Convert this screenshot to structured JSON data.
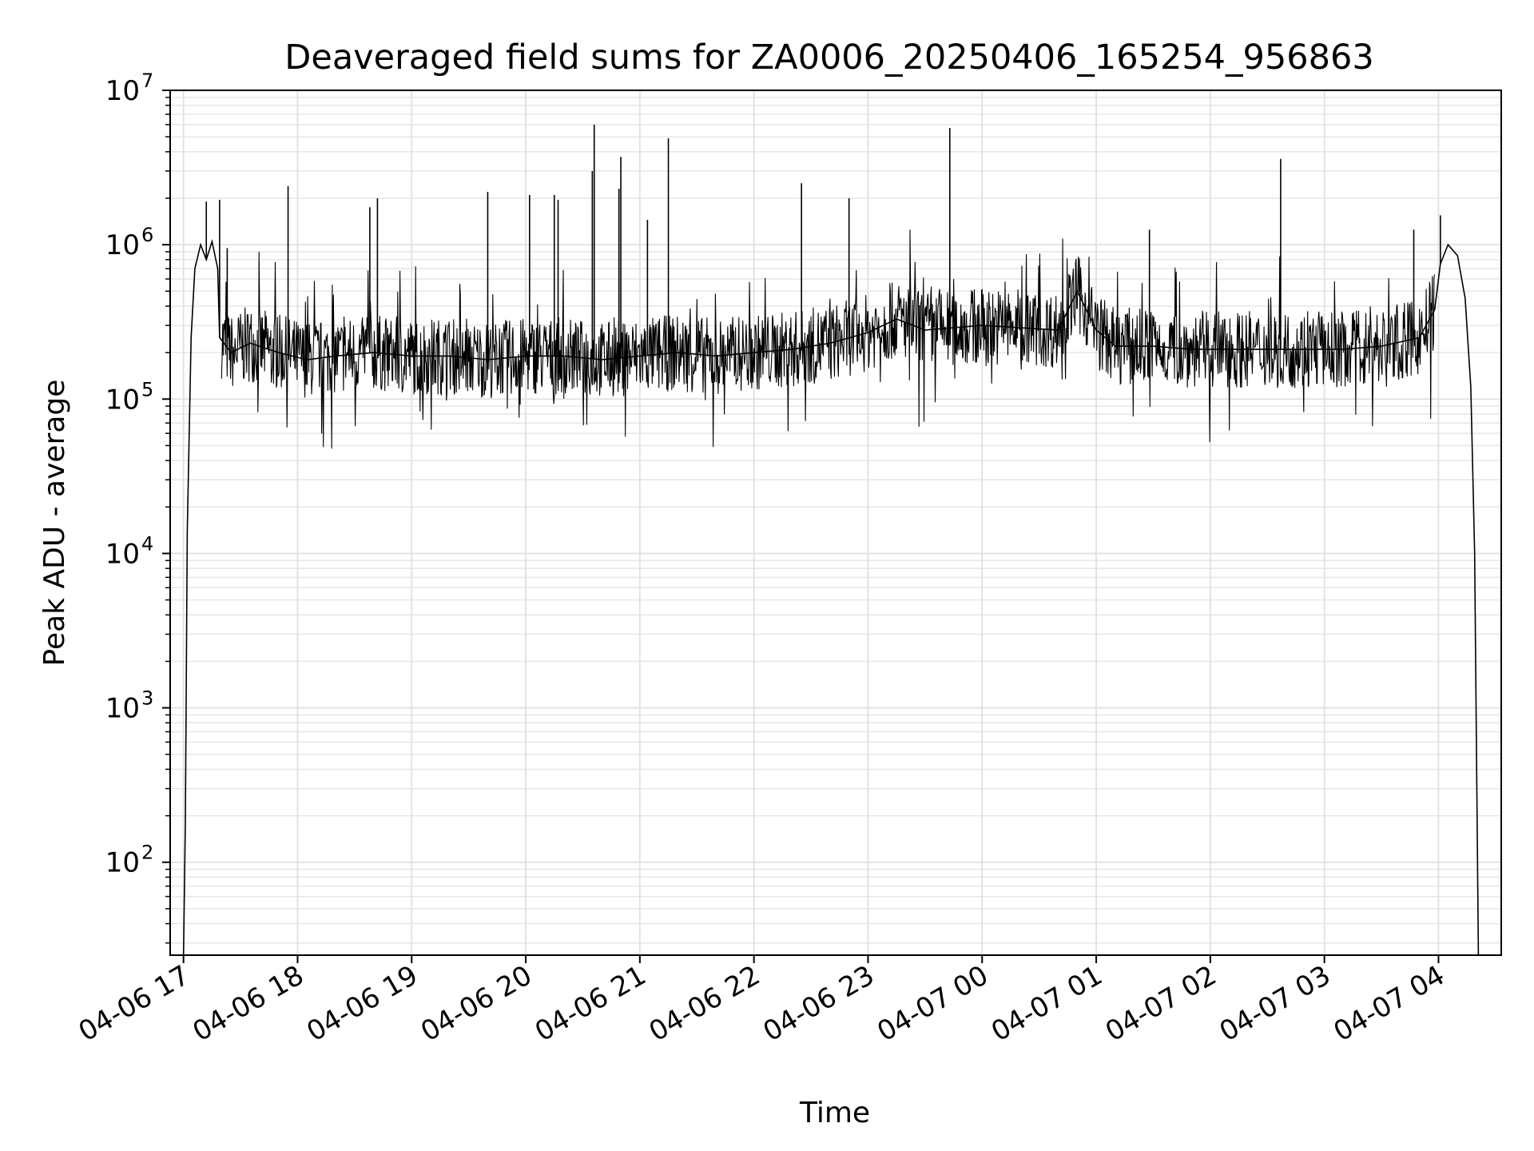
{
  "chart_data": {
    "type": "line",
    "title": "Deaveraged field sums for ZA0006_20250406_165254_956863",
    "xlabel": "Time",
    "ylabel": "Peak ADU - average",
    "yscale": "log",
    "ylim": [
      25,
      10000000
    ],
    "xlim": [
      "2025-04-06 16:53",
      "2025-04-07 04:33"
    ],
    "grid": true,
    "line_color": "#000000",
    "x_ticks": [
      {
        "t": "2025-04-06 17:00",
        "label": "04-06 17"
      },
      {
        "t": "2025-04-06 18:00",
        "label": "04-06 18"
      },
      {
        "t": "2025-04-06 19:00",
        "label": "04-06 19"
      },
      {
        "t": "2025-04-06 20:00",
        "label": "04-06 20"
      },
      {
        "t": "2025-04-06 21:00",
        "label": "04-06 21"
      },
      {
        "t": "2025-04-06 22:00",
        "label": "04-06 22"
      },
      {
        "t": "2025-04-06 23:00",
        "label": "04-06 23"
      },
      {
        "t": "2025-04-07 00:00",
        "label": "04-07 00"
      },
      {
        "t": "2025-04-07 01:00",
        "label": "04-07 01"
      },
      {
        "t": "2025-04-07 02:00",
        "label": "04-07 02"
      },
      {
        "t": "2025-04-07 03:00",
        "label": "04-07 03"
      },
      {
        "t": "2025-04-07 04:00",
        "label": "04-07 04"
      }
    ],
    "y_ticks": [
      {
        "value": 100,
        "base": "10",
        "exp": "2"
      },
      {
        "value": 1000,
        "base": "10",
        "exp": "3"
      },
      {
        "value": 10000,
        "base": "10",
        "exp": "4"
      },
      {
        "value": 100000,
        "base": "10",
        "exp": "5"
      },
      {
        "value": 1000000,
        "base": "10",
        "exp": "6"
      },
      {
        "value": 10000000,
        "base": "10",
        "exp": "7"
      }
    ],
    "series": [
      {
        "points": [
          [
            "2025-04-06 17:00",
            25
          ],
          [
            "2025-04-06 17:01",
            180
          ],
          [
            "2025-04-06 17:02",
            14000
          ],
          [
            "2025-04-06 17:04",
            250000
          ],
          [
            "2025-04-06 17:06",
            700000
          ],
          [
            "2025-04-06 17:09",
            1000000
          ],
          [
            "2025-04-06 17:12",
            800000
          ],
          [
            "2025-04-06 17:15",
            1050000
          ],
          [
            "2025-04-06 17:18",
            700000
          ],
          [
            "2025-04-06 17:19",
            250000
          ],
          [
            "2025-04-06 17:25",
            200000
          ],
          [
            "2025-04-06 17:35",
            230000
          ],
          [
            "2025-04-06 17:50",
            200000
          ],
          [
            "2025-04-06 18:05",
            180000
          ],
          [
            "2025-04-06 18:20",
            190000
          ],
          [
            "2025-04-06 18:40",
            200000
          ],
          [
            "2025-04-06 19:00",
            190000
          ],
          [
            "2025-04-06 19:20",
            190000
          ],
          [
            "2025-04-06 19:40",
            180000
          ],
          [
            "2025-04-06 20:00",
            190000
          ],
          [
            "2025-04-06 20:20",
            190000
          ],
          [
            "2025-04-06 20:40",
            180000
          ],
          [
            "2025-04-06 21:00",
            190000
          ],
          [
            "2025-04-06 21:20",
            200000
          ],
          [
            "2025-04-06 21:40",
            190000
          ],
          [
            "2025-04-06 22:00",
            200000
          ],
          [
            "2025-04-06 22:20",
            210000
          ],
          [
            "2025-04-06 22:40",
            230000
          ],
          [
            "2025-04-06 23:00",
            270000
          ],
          [
            "2025-04-06 23:15",
            330000
          ],
          [
            "2025-04-06 23:30",
            280000
          ],
          [
            "2025-04-06 23:45",
            290000
          ],
          [
            "2025-04-07 00:00",
            300000
          ],
          [
            "2025-04-07 00:20",
            290000
          ],
          [
            "2025-04-07 00:40",
            280000
          ],
          [
            "2025-04-07 00:50",
            500000
          ],
          [
            "2025-04-07 01:00",
            280000
          ],
          [
            "2025-04-07 01:10",
            220000
          ],
          [
            "2025-04-07 01:30",
            220000
          ],
          [
            "2025-04-07 01:50",
            210000
          ],
          [
            "2025-04-07 02:10",
            210000
          ],
          [
            "2025-04-07 02:30",
            210000
          ],
          [
            "2025-04-07 02:50",
            210000
          ],
          [
            "2025-04-07 03:10",
            210000
          ],
          [
            "2025-04-07 03:30",
            220000
          ],
          [
            "2025-04-07 03:50",
            250000
          ],
          [
            "2025-04-07 03:58",
            380000
          ],
          [
            "2025-04-07 04:01",
            750000
          ],
          [
            "2025-04-07 04:05",
            1000000
          ],
          [
            "2025-04-07 04:10",
            850000
          ],
          [
            "2025-04-07 04:14",
            450000
          ],
          [
            "2025-04-07 04:17",
            120000
          ],
          [
            "2025-04-07 04:19",
            10000
          ],
          [
            "2025-04-07 04:21",
            25
          ]
        ],
        "spikes": [
          [
            "2025-04-06 17:12",
            1900000
          ],
          [
            "2025-04-06 17:19",
            1950000
          ],
          [
            "2025-04-06 17:23",
            950000
          ],
          [
            "2025-04-06 17:55",
            2400000
          ],
          [
            "2025-04-06 18:38",
            1750000
          ],
          [
            "2025-04-06 18:42",
            2000000
          ],
          [
            "2025-04-06 19:40",
            2200000
          ],
          [
            "2025-04-06 20:02",
            2100000
          ],
          [
            "2025-04-06 20:15",
            2100000
          ],
          [
            "2025-04-06 20:17",
            1950000
          ],
          [
            "2025-04-06 20:35",
            3000000
          ],
          [
            "2025-04-06 20:36",
            6000000
          ],
          [
            "2025-04-06 20:49",
            2300000
          ],
          [
            "2025-04-06 20:50",
            3700000
          ],
          [
            "2025-04-06 21:04",
            1450000
          ],
          [
            "2025-04-06 21:15",
            4900000
          ],
          [
            "2025-04-06 22:25",
            2500000
          ],
          [
            "2025-04-06 22:50",
            2000000
          ],
          [
            "2025-04-06 23:43",
            5700000
          ],
          [
            "2025-04-07 01:28",
            1250000
          ],
          [
            "2025-04-07 02:37",
            3600000
          ],
          [
            "2025-04-07 03:47",
            1250000
          ],
          [
            "2025-04-07 04:01",
            1550000
          ]
        ]
      }
    ]
  }
}
